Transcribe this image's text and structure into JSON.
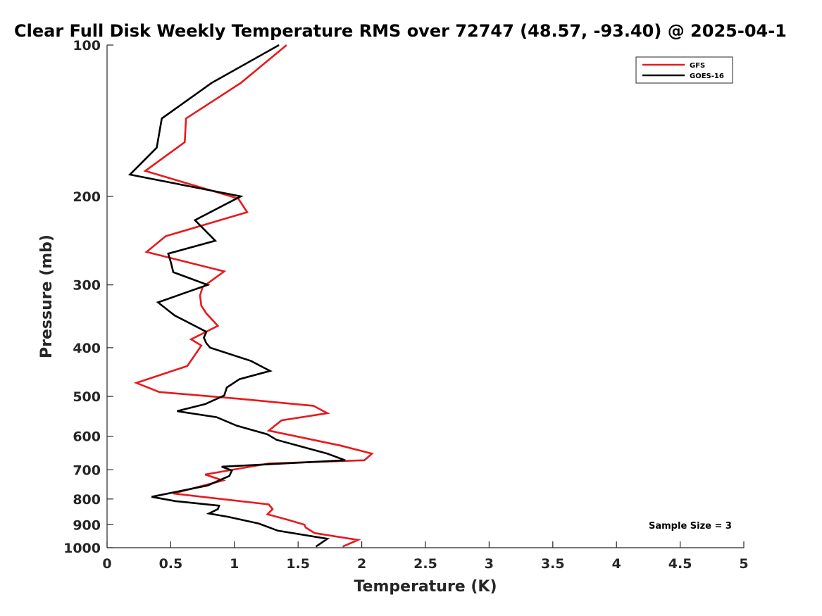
{
  "chart_data": {
    "type": "line",
    "title": "Clear Full Disk Weekly Temperature RMS over 72747 (48.57, -93.40) @ 2025-04-1",
    "xlabel": "Temperature (K)",
    "ylabel": "Pressure (mb)",
    "xlim": [
      0,
      5
    ],
    "ylim": [
      1000,
      100
    ],
    "y_scale": "log",
    "grid": false,
    "legend_position": "top-right",
    "x_ticks": [
      0,
      0.5,
      1,
      1.5,
      2,
      2.5,
      3,
      3.5,
      4,
      4.5,
      5
    ],
    "x_tick_labels": [
      "0",
      "0.5",
      "1",
      "1.5",
      "2",
      "2.5",
      "3",
      "3.5",
      "4",
      "4.5",
      "5"
    ],
    "y_ticks": [
      100,
      200,
      300,
      400,
      500,
      600,
      700,
      800,
      900,
      1000
    ],
    "y_tick_labels": [
      "100",
      "200",
      "300",
      "400",
      "500",
      "600",
      "700",
      "800",
      "900",
      "1000"
    ],
    "annotation": "Sample Size = 3",
    "series": [
      {
        "name": "GFS",
        "color": "#e8191c",
        "x": [
          1.41,
          1.05,
          0.62,
          0.61,
          0.3,
          1.03,
          1.1,
          0.46,
          0.31,
          0.92,
          0.75,
          0.73,
          0.74,
          0.78,
          0.87,
          0.66,
          0.74,
          0.7,
          0.63,
          0.23,
          0.41,
          1.02,
          1.62,
          1.73,
          1.37,
          1.27,
          1.84,
          2.08,
          2.02,
          1.27,
          0.77,
          0.91,
          0.52,
          1.27,
          1.3,
          1.26,
          1.42,
          1.55,
          1.56,
          1.63,
          1.97,
          1.85
        ],
        "y": [
          100,
          119,
          140,
          156,
          178,
          202,
          215,
          240,
          258,
          282,
          303,
          315,
          330,
          342,
          362,
          385,
          396,
          410,
          435,
          470,
          490,
          505,
          522,
          540,
          558,
          585,
          627,
          650,
          670,
          680,
          715,
          735,
          780,
          820,
          838,
          858,
          880,
          900,
          912,
          935,
          965,
          995
        ]
      },
      {
        "name": "GOES-16",
        "color": "#000000",
        "x": [
          1.35,
          0.82,
          0.43,
          0.39,
          0.18,
          1.05,
          0.69,
          0.85,
          0.48,
          0.5,
          0.52,
          0.79,
          0.4,
          0.53,
          0.78,
          0.76,
          0.78,
          0.81,
          1.13,
          1.28,
          1.04,
          0.94,
          0.92,
          0.77,
          0.55,
          0.86,
          1.02,
          1.26,
          1.33,
          1.73,
          1.87,
          0.9,
          0.98,
          0.96,
          0.79,
          0.35,
          0.54,
          0.88,
          0.87,
          0.8,
          0.95,
          1.19,
          1.34,
          1.73,
          1.64
        ],
        "y": [
          100,
          119,
          140,
          160,
          181,
          200,
          223,
          245,
          260,
          270,
          283,
          300,
          325,
          345,
          372,
          382,
          392,
          400,
          425,
          445,
          462,
          480,
          498,
          518,
          535,
          550,
          572,
          595,
          610,
          650,
          670,
          690,
          702,
          720,
          752,
          792,
          808,
          825,
          838,
          855,
          868,
          895,
          925,
          960,
          995
        ]
      }
    ]
  }
}
